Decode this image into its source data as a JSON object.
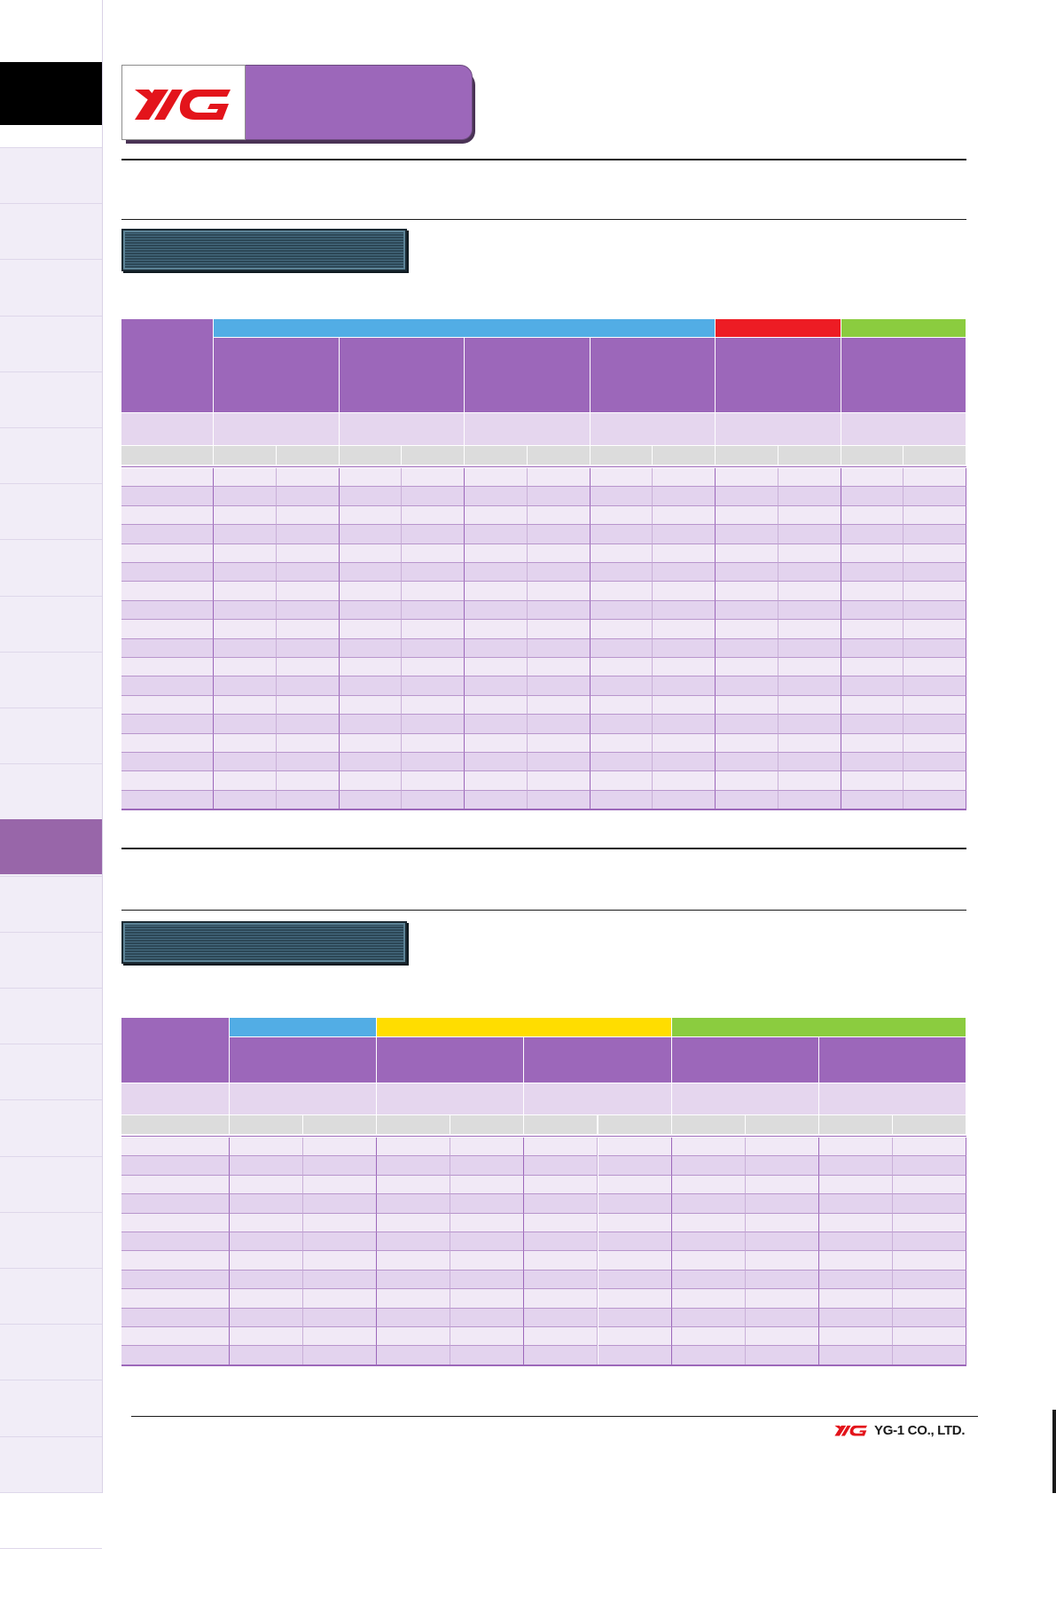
{
  "brand": {
    "logo_text": "YG",
    "company_name": "YG-1 CO., LTD.",
    "logo_color": "#e3141b",
    "accent_purple": "#9c67ba"
  },
  "side_tabs": {
    "tab_count": 26,
    "active_index": 12
  },
  "table1": {
    "group_colors": [
      "#52ade5",
      "#ed1c24",
      "#8bcc3f"
    ],
    "group_spans": [
      4,
      1,
      1
    ],
    "data_columns": 6,
    "data_rows": 18
  },
  "table2": {
    "group_colors": [
      "#52ade5",
      "#ffdd00",
      "#8bcc3f"
    ],
    "group_spans": [
      1,
      2,
      2
    ],
    "data_columns": 5,
    "data_rows": 12
  }
}
